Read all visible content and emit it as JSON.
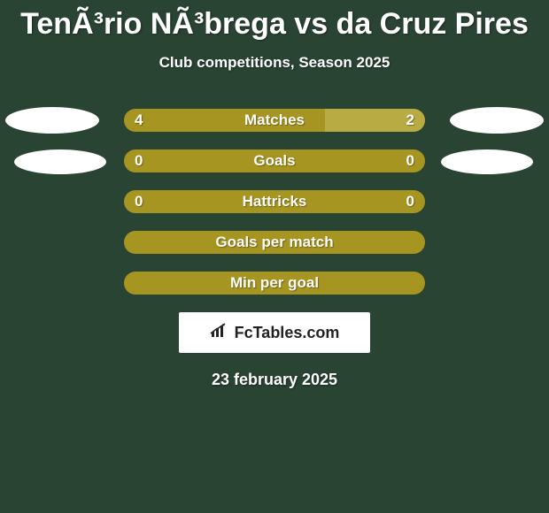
{
  "colors": {
    "bg": "#2a4434",
    "bar_primary": "#a79521",
    "bar_secondary": "#b9a939",
    "bar_light": "#b8ab44",
    "text": "#ffffff",
    "badge_bg": "#ffffff",
    "badge_text": "#222222"
  },
  "header": {
    "title": "TenÃ³rio NÃ³brega vs da Cruz Pires",
    "subtitle": "Club competitions, Season 2025"
  },
  "rows": [
    {
      "label": "Matches",
      "left_value": "4",
      "right_value": "2",
      "show_avatars": true,
      "avatar_shift": false,
      "split": {
        "left_pct": 66.7,
        "right_pct": 33.3
      },
      "left_color": "#a79521",
      "right_color": "#b8ab44",
      "full": false
    },
    {
      "label": "Goals",
      "left_value": "0",
      "right_value": "0",
      "show_avatars": true,
      "avatar_shift": true,
      "split": {
        "left_pct": 50,
        "right_pct": 50
      },
      "left_color": "#a79521",
      "right_color": "#a79521",
      "full": true
    },
    {
      "label": "Hattricks",
      "left_value": "0",
      "right_value": "0",
      "show_avatars": false,
      "split": {
        "left_pct": 50,
        "right_pct": 50
      },
      "left_color": "#a79521",
      "right_color": "#a79521",
      "full": true
    },
    {
      "label": "Goals per match",
      "left_value": "",
      "right_value": "",
      "show_avatars": false,
      "split": {
        "left_pct": 100,
        "right_pct": 0
      },
      "left_color": "#a79521",
      "right_color": "#a79521",
      "full": true
    },
    {
      "label": "Min per goal",
      "left_value": "",
      "right_value": "",
      "show_avatars": false,
      "split": {
        "left_pct": 100,
        "right_pct": 0
      },
      "left_color": "#a79521",
      "right_color": "#a79521",
      "full": true
    }
  ],
  "badge": {
    "text": "FcTables.com"
  },
  "date": "23 february 2025"
}
